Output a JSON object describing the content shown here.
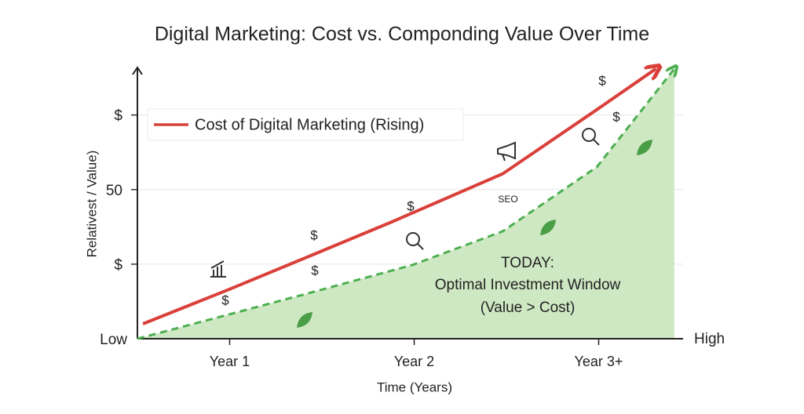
{
  "chart_data": {
    "type": "line",
    "title": "Digital Marketing: Cost vs. Componding Value Over Time",
    "x_label": "Time (Years)",
    "y_label": "Relativest / Value)",
    "x_end_label": "High",
    "xlim": [
      0.5,
      3.5
    ],
    "ylim": [
      0,
      92
    ],
    "xticks": [
      {
        "value": 1,
        "label": "Year 1"
      },
      {
        "value": 2,
        "label": "Year 2"
      },
      {
        "value": 3,
        "label": "Year 3+"
      }
    ],
    "yticks": [
      {
        "value": 0,
        "label": "Low"
      },
      {
        "value": 25,
        "label": "$"
      },
      50,
      {
        "value": 75,
        "label": "$"
      }
    ],
    "grid": true,
    "series": [
      {
        "name": "Cost of Digital Marketing (Rising)",
        "color": "#d9403a",
        "style": "solid",
        "x": [
          0.53,
          1,
          1.46,
          1.88,
          2.48,
          2.99,
          3.31
        ],
        "values": [
          5,
          16.6,
          28.4,
          39.2,
          55.3,
          76.8,
          90.5
        ]
      },
      {
        "color": "#4caf50",
        "style": "dashed",
        "fill": "#cfe8c4",
        "x": [
          0.5,
          1,
          1.46,
          1.99,
          2.48,
          2.99,
          3.41
        ],
        "values": [
          0,
          8.2,
          15.8,
          24.7,
          36,
          57.6,
          90.5
        ]
      }
    ],
    "annotation": [
      "TODAY:",
      "Optimal Investment Window",
      "(Value > Cost)"
    ],
    "seo_label": "SEO",
    "dollar_marks": [
      "$",
      "$",
      "$",
      "$",
      "$",
      "$"
    ]
  }
}
